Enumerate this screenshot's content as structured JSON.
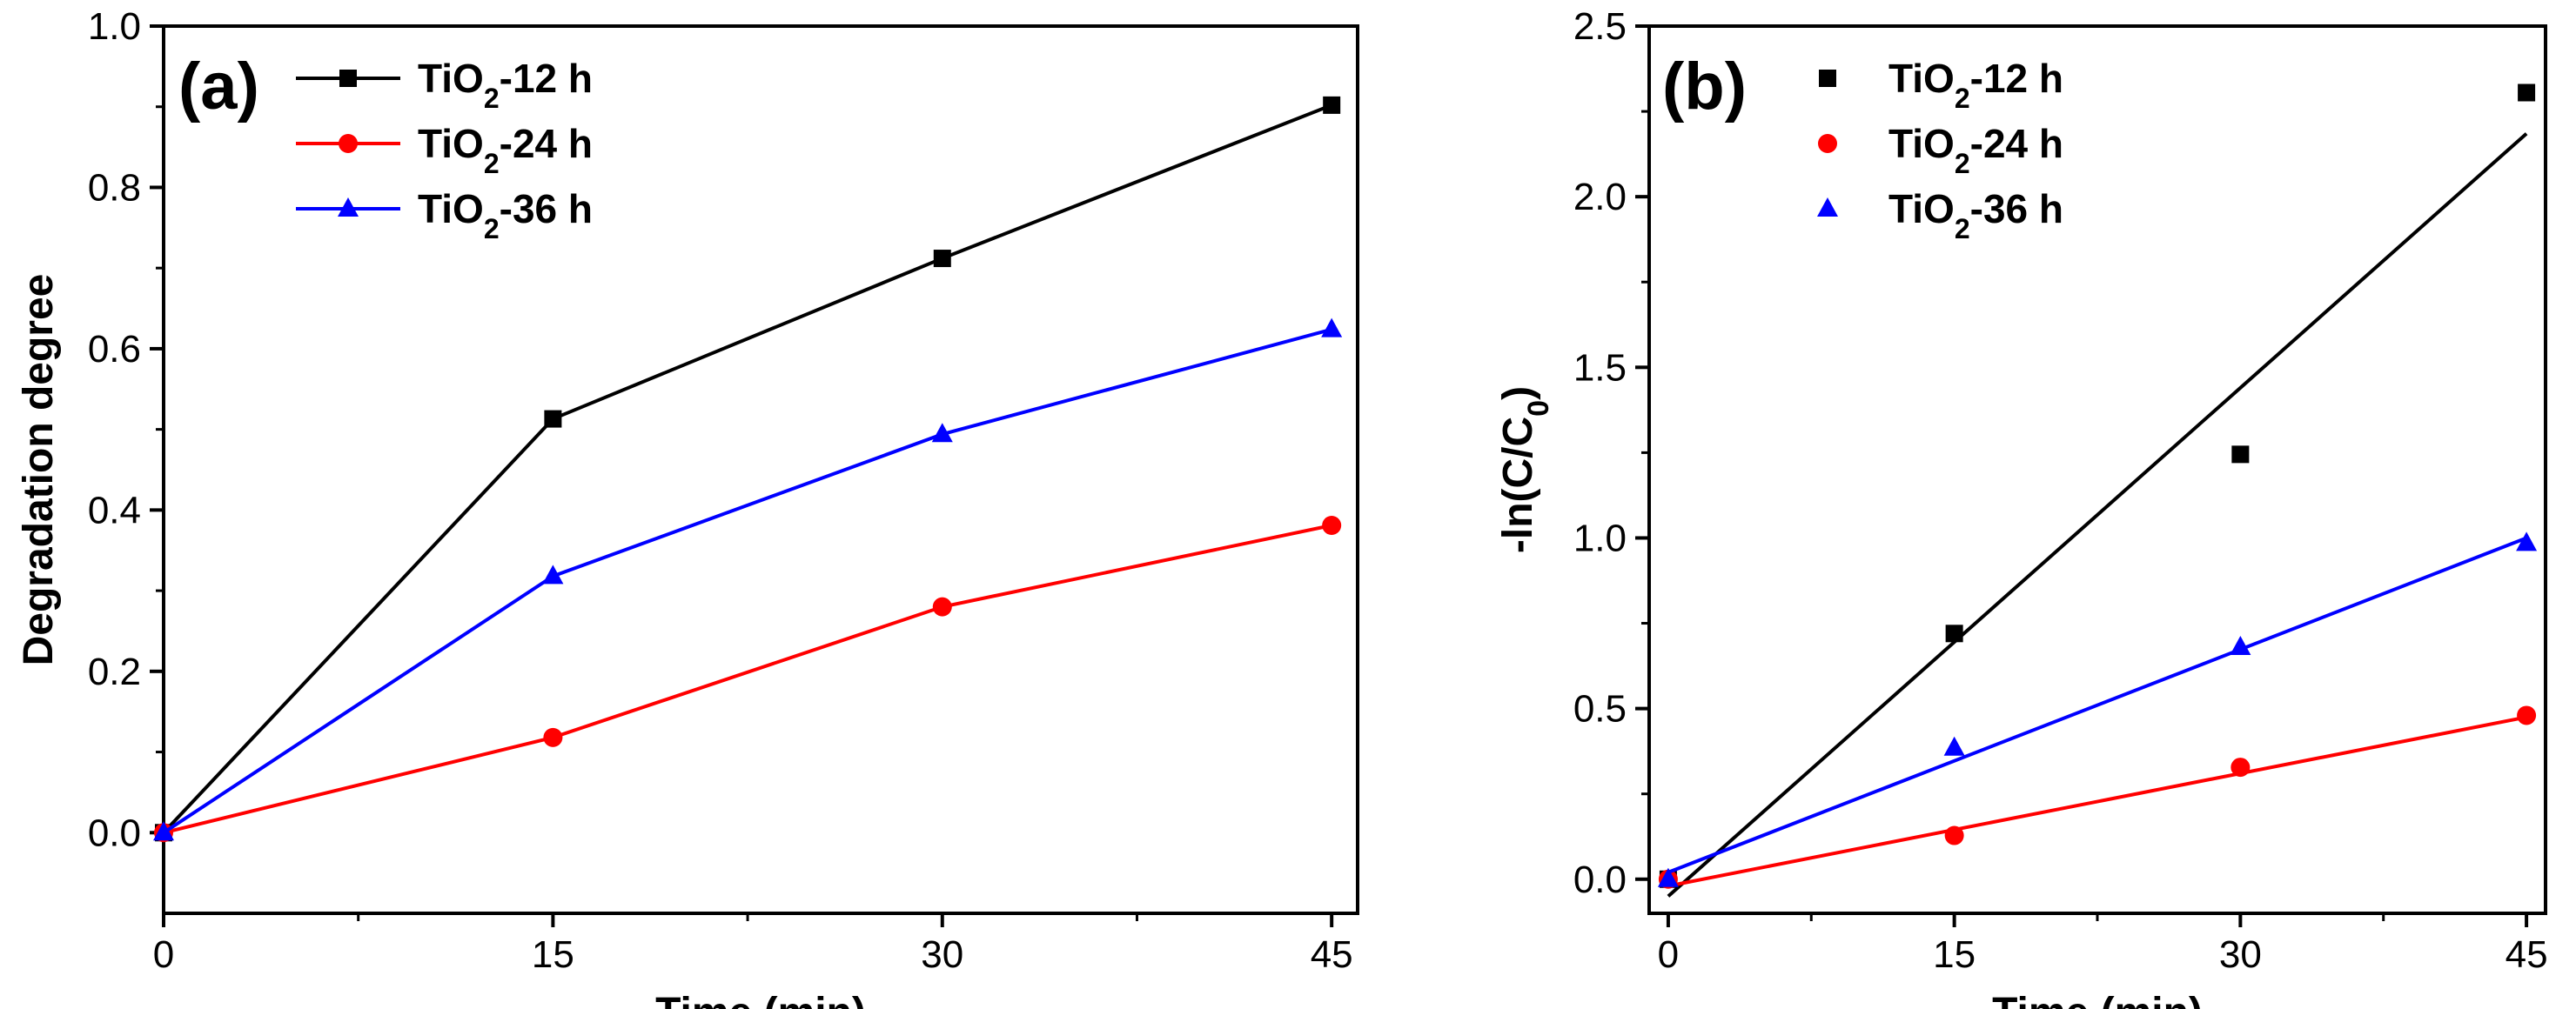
{
  "chart_data": [
    {
      "type": "line",
      "panel_label": "(a)",
      "xlabel": "Time (min)",
      "ylabel": "Degradation degree",
      "xlim": [
        0,
        46
      ],
      "ylim": [
        -0.1,
        1.0
      ],
      "xticks": [
        0,
        15,
        30,
        45
      ],
      "yticks": [
        0.0,
        0.2,
        0.4,
        0.6,
        0.8,
        1.0
      ],
      "ytick_labels": [
        "0.0",
        "0.2",
        "0.4",
        "0.6",
        "0.8",
        "1.0"
      ],
      "xtick_labels": [
        "0",
        "15",
        "30",
        "45"
      ],
      "legend_position": "top-left",
      "x": [
        0,
        15,
        30,
        45
      ],
      "series": [
        {
          "name": "TiO2-12 h",
          "base": "TiO",
          "sub": "2",
          "rest": "-12 h",
          "color": "#000000",
          "marker": "square",
          "values": [
            0.0,
            0.513,
            0.712,
            0.902
          ]
        },
        {
          "name": "TiO2-24 h",
          "base": "TiO",
          "sub": "2",
          "rest": "-24 h",
          "color": "#ff0000",
          "marker": "circle",
          "values": [
            0.0,
            0.118,
            0.28,
            0.381
          ]
        },
        {
          "name": "TiO2-36 h",
          "base": "TiO",
          "sub": "2",
          "rest": "-36 h",
          "color": "#0000ff",
          "marker": "triangle",
          "values": [
            0.0,
            0.318,
            0.494,
            0.624
          ]
        }
      ]
    },
    {
      "type": "scatter",
      "panel_label": "(b)",
      "xlabel": "Time (min)",
      "ylabel_main": "-ln(C/C",
      "ylabel_sub": "0",
      "ylabel_end": ")",
      "xlim": [
        -1,
        46
      ],
      "ylim": [
        -0.1,
        2.5
      ],
      "xticks": [
        0,
        15,
        30,
        45
      ],
      "yticks": [
        0.0,
        0.5,
        1.0,
        1.5,
        2.0,
        2.5
      ],
      "ytick_labels": [
        "0.0",
        "0.5",
        "1.0",
        "1.5",
        "2.0",
        "2.5"
      ],
      "xtick_labels": [
        "0",
        "15",
        "30",
        "45"
      ],
      "legend_position": "top-left",
      "x": [
        0,
        15,
        30,
        45
      ],
      "series": [
        {
          "name": "TiO2-12 h",
          "base": "TiO",
          "sub": "2",
          "rest": "-12 h",
          "color": "#000000",
          "marker": "square",
          "values": [
            0.0,
            0.72,
            1.245,
            2.305
          ],
          "fit": [
            -0.05,
            2.185
          ]
        },
        {
          "name": "TiO2-24 h",
          "base": "TiO",
          "sub": "2",
          "rest": "-24 h",
          "color": "#ff0000",
          "marker": "circle",
          "values": [
            0.0,
            0.128,
            0.328,
            0.48
          ],
          "fit": [
            -0.02,
            0.475
          ]
        },
        {
          "name": "TiO2-36 h",
          "base": "TiO",
          "sub": "2",
          "rest": "-36 h",
          "color": "#0000ff",
          "marker": "triangle",
          "values": [
            0.0,
            0.385,
            0.68,
            0.985
          ],
          "fit": [
            0.02,
            1.0
          ]
        }
      ]
    }
  ]
}
